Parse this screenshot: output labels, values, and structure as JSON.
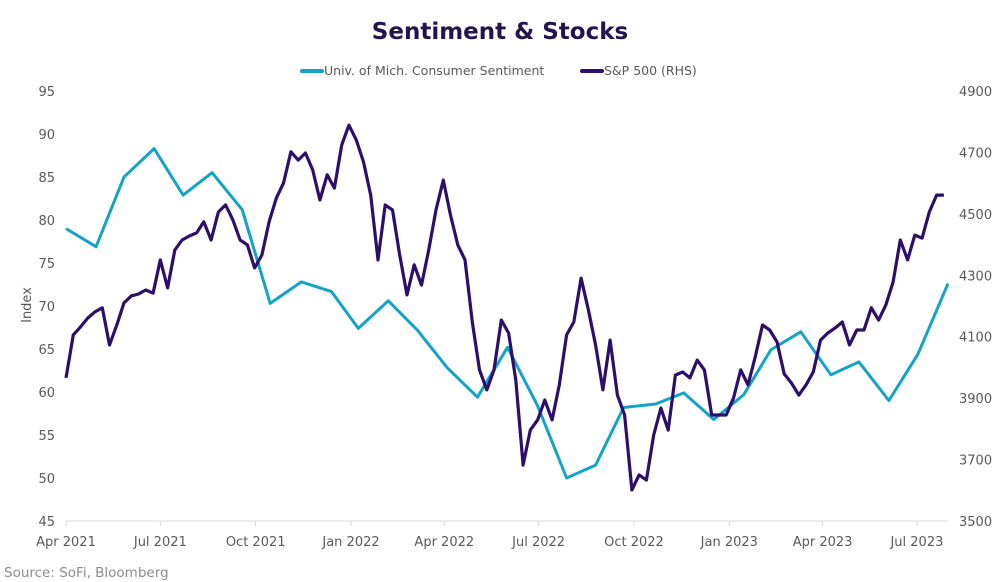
{
  "chart_data": {
    "type": "line",
    "title": "Sentiment & Stocks",
    "source": "Source: SoFi, Bloomberg",
    "y_left": {
      "label": "Index",
      "ticks": [
        "95",
        "90",
        "85",
        "80",
        "75",
        "70",
        "65",
        "60",
        "55",
        "50",
        "45"
      ],
      "range": [
        45,
        95
      ]
    },
    "y_right": {
      "label": "",
      "ticks": [
        "4900",
        "4700",
        "4500",
        "4300",
        "4100",
        "3900",
        "3700",
        "3500"
      ],
      "range": [
        3500,
        4900
      ]
    },
    "x_axis": {
      "range": [
        "2021-04-01",
        "2023-07-31"
      ],
      "tick_labels": [
        "Apr 2021",
        "Jul 2021",
        "Oct 2021",
        "Jan 2022",
        "Apr 2022",
        "Jul 2022",
        "Oct 2022",
        "Jan 2023",
        "Apr 2023",
        "Jul 2023"
      ],
      "tick_dates": [
        "2021-04-01",
        "2021-07-01",
        "2021-10-01",
        "2022-01-01",
        "2022-04-01",
        "2022-07-01",
        "2022-10-01",
        "2023-01-01",
        "2023-04-01",
        "2023-07-01"
      ]
    },
    "grid": false,
    "legend_position": "top",
    "series": [
      {
        "name": "Univ. of Mich. Consumer Sentiment",
        "axis": "left",
        "color": "#12a3c6",
        "x": [
          "2021-04-01",
          "2021-04-30",
          "2021-05-27",
          "2021-06-25",
          "2021-07-23",
          "2021-08-20",
          "2021-09-18",
          "2021-10-15",
          "2021-11-14",
          "2021-12-13",
          "2022-01-08",
          "2022-02-06",
          "2022-03-06",
          "2022-04-04",
          "2022-05-03",
          "2022-06-01",
          "2022-06-30",
          "2022-07-28",
          "2022-08-25",
          "2022-09-21",
          "2022-10-22",
          "2022-11-18",
          "2022-12-17",
          "2023-01-15",
          "2023-02-10",
          "2023-03-11",
          "2023-04-09",
          "2023-05-06",
          "2023-06-04",
          "2023-07-02",
          "2023-07-31"
        ],
        "values": [
          79.0,
          76.9,
          85.0,
          88.3,
          82.9,
          85.5,
          81.2,
          70.3,
          72.8,
          71.7,
          67.4,
          70.6,
          67.2,
          62.8,
          59.4,
          65.2,
          58.4,
          50.0,
          51.5,
          58.2,
          58.6,
          59.9,
          56.8,
          59.7,
          64.9,
          67.0,
          62.0,
          63.5,
          59.0,
          64.4,
          72.6
        ]
      },
      {
        "name": "S&P 500 (RHS)",
        "axis": "right",
        "color": "#2d0f6b",
        "x": [
          "2021-04-01",
          "2021-04-08",
          "2021-04-15",
          "2021-04-22",
          "2021-04-29",
          "2021-05-06",
          "2021-05-13",
          "2021-05-20",
          "2021-05-27",
          "2021-06-03",
          "2021-06-10",
          "2021-06-17",
          "2021-06-24",
          "2021-07-01",
          "2021-07-08",
          "2021-07-15",
          "2021-07-22",
          "2021-07-29",
          "2021-08-05",
          "2021-08-12",
          "2021-08-19",
          "2021-08-26",
          "2021-09-02",
          "2021-09-09",
          "2021-09-16",
          "2021-09-23",
          "2021-09-30",
          "2021-10-07",
          "2021-10-14",
          "2021-10-21",
          "2021-10-28",
          "2021-11-04",
          "2021-11-11",
          "2021-11-18",
          "2021-11-25",
          "2021-12-02",
          "2021-12-09",
          "2021-12-16",
          "2021-12-23",
          "2021-12-30",
          "2022-01-06",
          "2022-01-13",
          "2022-01-20",
          "2022-01-27",
          "2022-02-03",
          "2022-02-10",
          "2022-02-17",
          "2022-02-24",
          "2022-03-03",
          "2022-03-10",
          "2022-03-17",
          "2022-03-24",
          "2022-03-31",
          "2022-04-07",
          "2022-04-14",
          "2022-04-21",
          "2022-04-28",
          "2022-05-05",
          "2022-05-12",
          "2022-05-19",
          "2022-05-26",
          "2022-06-02",
          "2022-06-09",
          "2022-06-16",
          "2022-06-23",
          "2022-06-30",
          "2022-07-07",
          "2022-07-14",
          "2022-07-21",
          "2022-07-28",
          "2022-08-04",
          "2022-08-11",
          "2022-08-18",
          "2022-08-25",
          "2022-09-01",
          "2022-09-08",
          "2022-09-15",
          "2022-09-22",
          "2022-09-29",
          "2022-10-06",
          "2022-10-13",
          "2022-10-20",
          "2022-10-27",
          "2022-11-03",
          "2022-11-10",
          "2022-11-17",
          "2022-11-24",
          "2022-12-01",
          "2022-12-08",
          "2022-12-15",
          "2022-12-22",
          "2022-12-29",
          "2023-01-05",
          "2023-01-12",
          "2023-01-19",
          "2023-01-26",
          "2023-02-02",
          "2023-02-09",
          "2023-02-16",
          "2023-02-23",
          "2023-03-02",
          "2023-03-09",
          "2023-03-16",
          "2023-03-23",
          "2023-03-30",
          "2023-04-06",
          "2023-04-13",
          "2023-04-20",
          "2023-04-27",
          "2023-05-04",
          "2023-05-11",
          "2023-05-18",
          "2023-05-25",
          "2023-06-01",
          "2023-06-08",
          "2023-06-15",
          "2023-06-22",
          "2023-06-29",
          "2023-07-06",
          "2023-07-13",
          "2023-07-20",
          "2023-07-27"
        ],
        "values": [
          3966,
          4106,
          4132,
          4161,
          4181,
          4194,
          4073,
          4138,
          4210,
          4233,
          4239,
          4252,
          4242,
          4350,
          4259,
          4382,
          4415,
          4428,
          4438,
          4474,
          4415,
          4506,
          4529,
          4480,
          4415,
          4399,
          4324,
          4366,
          4474,
          4552,
          4601,
          4702,
          4675,
          4698,
          4643,
          4545,
          4627,
          4584,
          4724,
          4789,
          4741,
          4669,
          4561,
          4350,
          4529,
          4513,
          4366,
          4236,
          4334,
          4268,
          4382,
          4513,
          4610,
          4496,
          4399,
          4350,
          4148,
          3992,
          3927,
          3992,
          4154,
          4112,
          3959,
          3682,
          3796,
          3829,
          3894,
          3829,
          3943,
          4106,
          4148,
          4291,
          4187,
          4073,
          3927,
          4089,
          3910,
          3845,
          3601,
          3650,
          3633,
          3780,
          3868,
          3796,
          3975,
          3985,
          3966,
          4024,
          3992,
          3845,
          3845,
          3845,
          3900,
          3992,
          3943,
          4034,
          4138,
          4122,
          4083,
          3979,
          3949,
          3910,
          3943,
          3985,
          4089,
          4112,
          4128,
          4148,
          4073,
          4122,
          4122,
          4194,
          4154,
          4203,
          4278,
          4415,
          4350,
          4431,
          4421,
          4506,
          4561,
          4561
        ]
      }
    ]
  }
}
